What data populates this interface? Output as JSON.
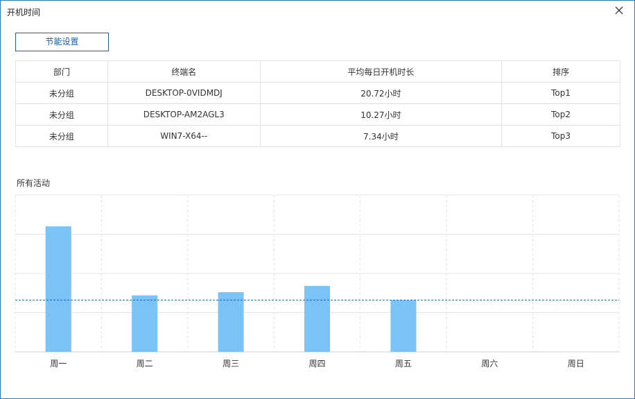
{
  "window": {
    "title": "开机时间",
    "close_icon": "close-icon"
  },
  "toolbar": {
    "energy_settings_label": "节能设置"
  },
  "table": {
    "headers": [
      "部门",
      "终端名",
      "平均每日开机时长",
      "排序"
    ],
    "rows": [
      [
        "未分组",
        "DESKTOP-0VIDMDJ",
        "20.72小时",
        "Top1"
      ],
      [
        "未分组",
        "DESKTOP-AM2AGL3",
        "10.27小时",
        "Top2"
      ],
      [
        "未分组",
        "WIN7-X64--",
        "7.34小时",
        "Top3"
      ]
    ]
  },
  "activity": {
    "label": "所有活动"
  },
  "chart_data": {
    "type": "bar",
    "title": "",
    "categories": [
      "周一",
      "周二",
      "周三",
      "周四",
      "周五",
      "周六",
      "周日"
    ],
    "values": [
      16,
      7.2,
      7.6,
      8.4,
      6.6,
      0,
      0
    ],
    "average_line": 6.6,
    "ylim": [
      0,
      20
    ],
    "grid": true,
    "bar_color": "#7ac3f7",
    "average_line_color": "#1e5fa8"
  }
}
